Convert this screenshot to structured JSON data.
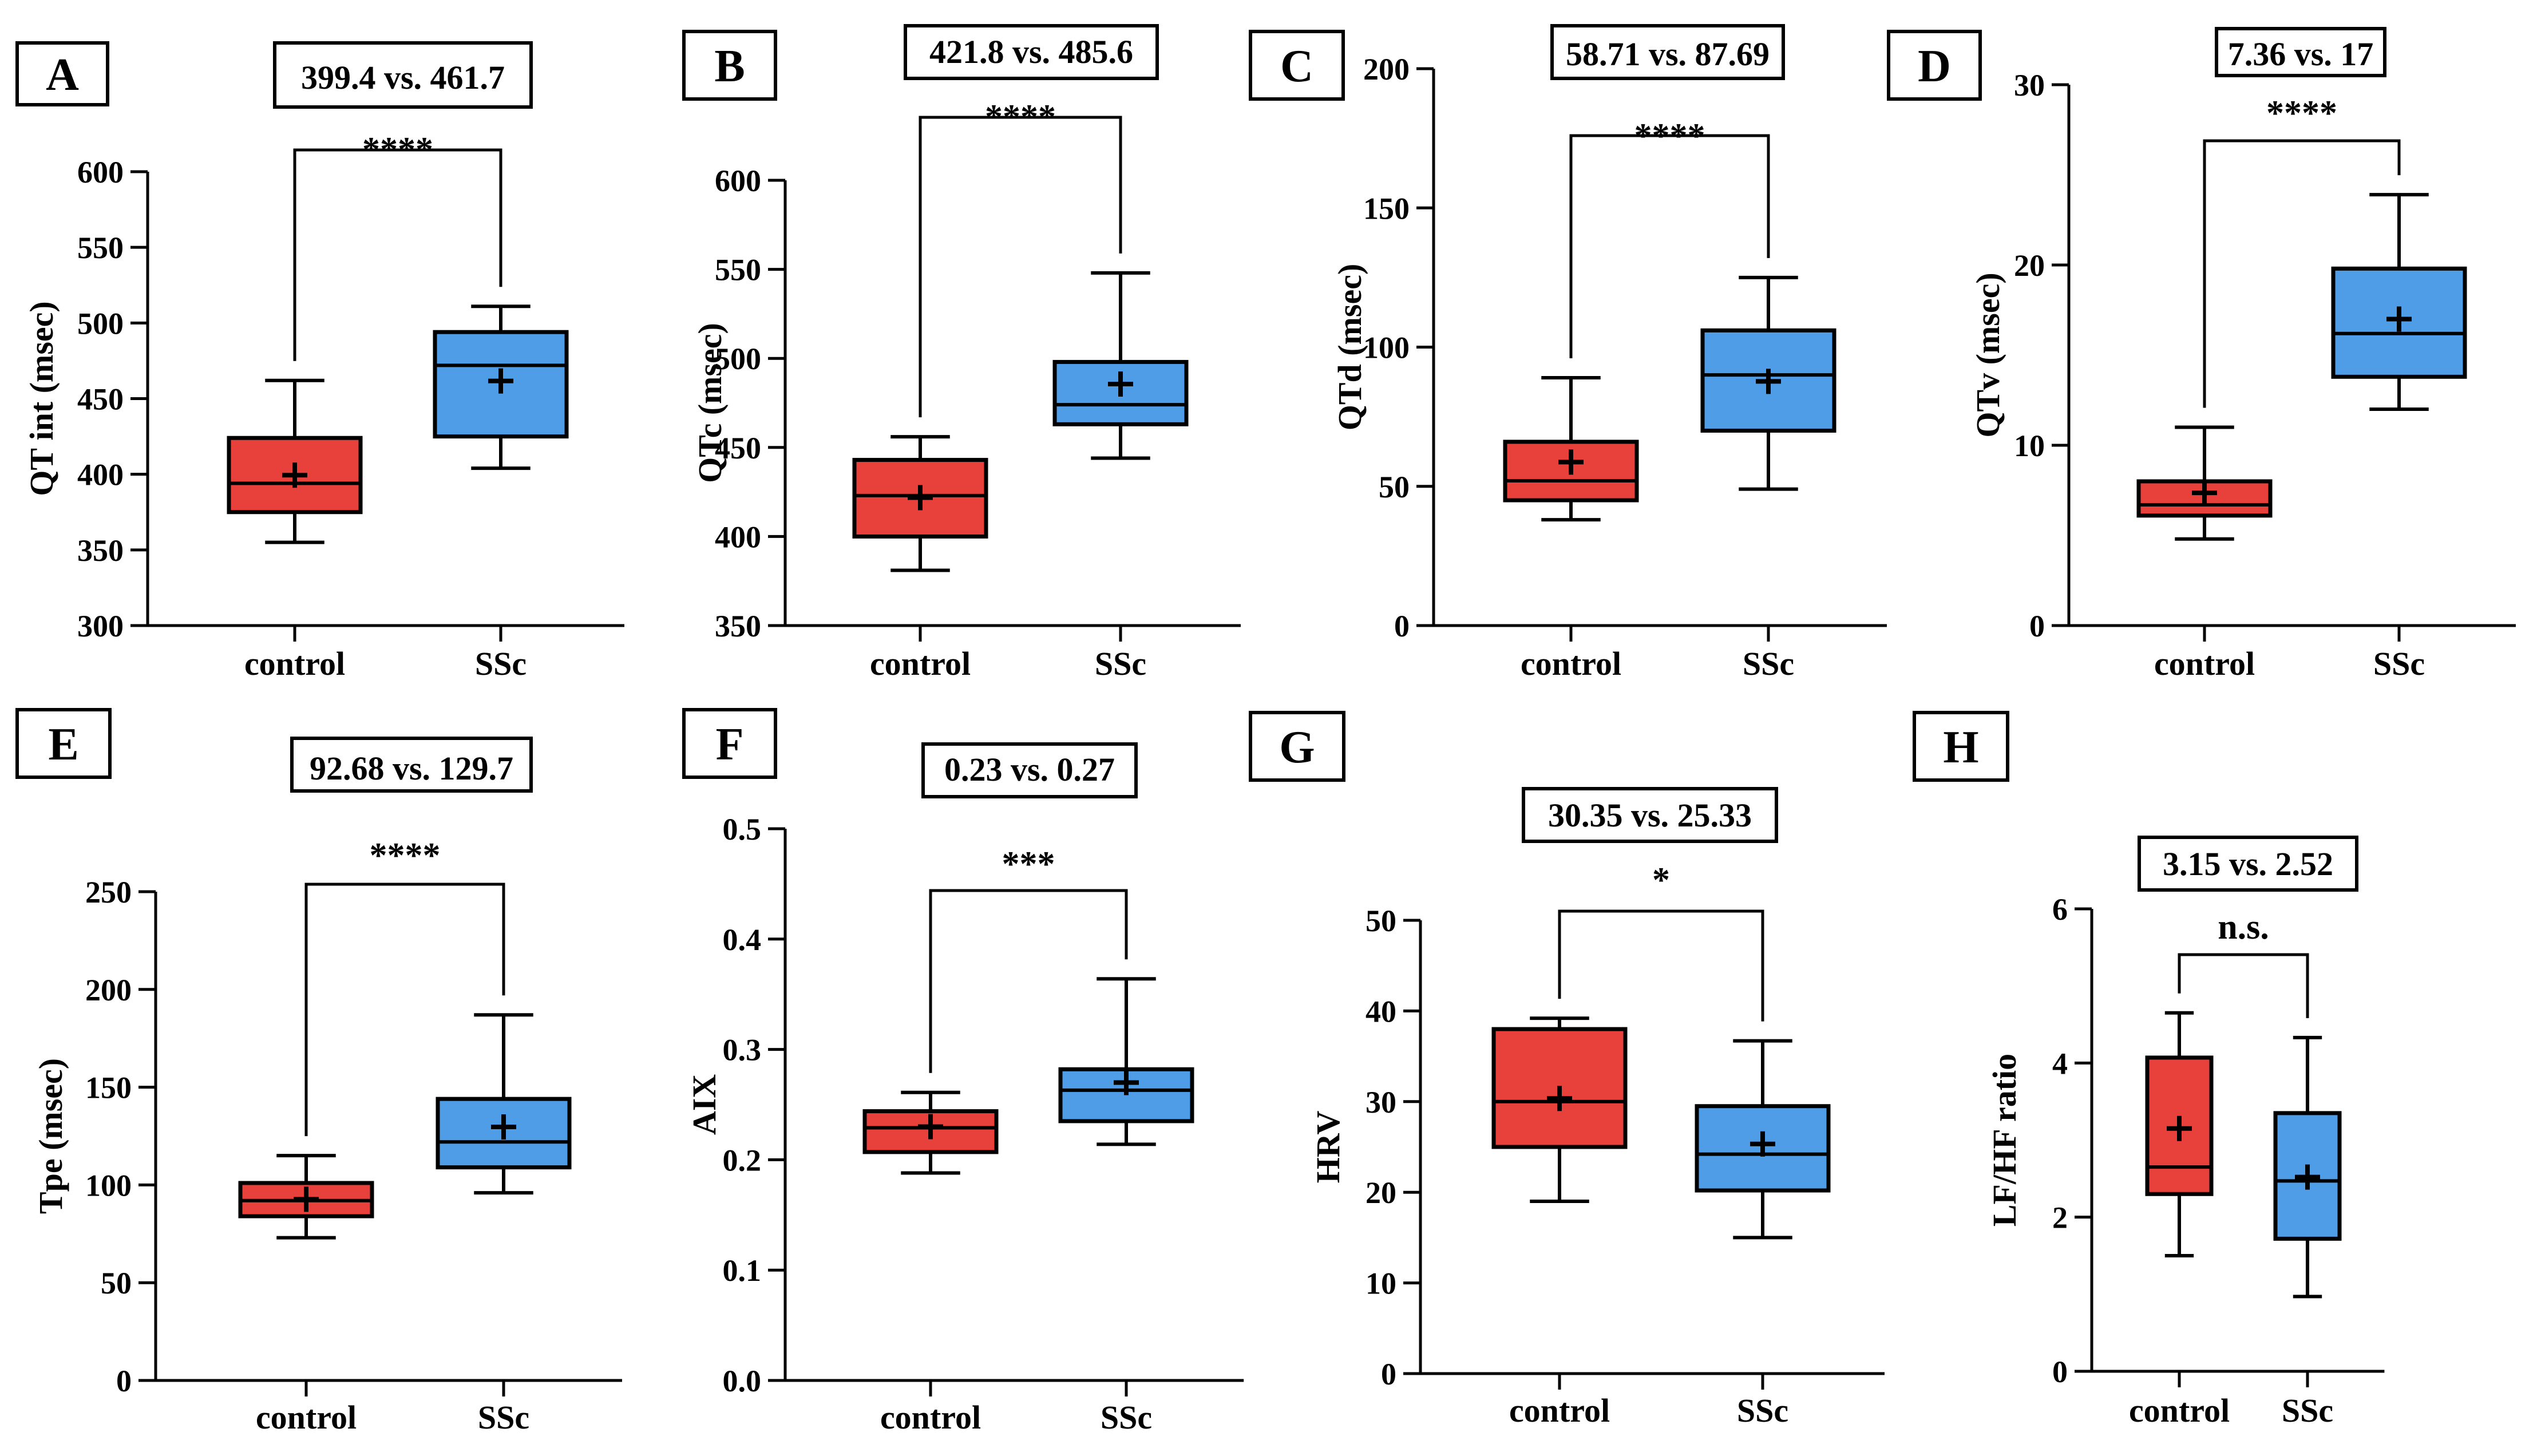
{
  "colors": {
    "control": "#e8413c",
    "ssc": "#4f9de6",
    "stroke": "#000000",
    "frame": "#000000"
  },
  "chart_data": [
    {
      "type": "box",
      "panel": "A",
      "comparison": "399.4 vs. 461.7",
      "significance": "****",
      "ylabel": "QT int (msec)",
      "ylim": [
        300,
        600
      ],
      "ticks": [
        300,
        350,
        400,
        450,
        500,
        550,
        600
      ],
      "categories": [
        "control",
        "SSc"
      ],
      "series": [
        {
          "name": "control",
          "min": 355,
          "q1": 375,
          "median": 394,
          "q3": 424,
          "max": 462,
          "mean": 399.4
        },
        {
          "name": "SSc",
          "min": 404,
          "q1": 425,
          "median": 472,
          "q3": 494,
          "max": 511,
          "mean": 461.7
        }
      ]
    },
    {
      "type": "box",
      "panel": "B",
      "comparison": "421.8 vs. 485.6",
      "significance": "****",
      "ylabel": "QTc (msec)",
      "ylim": [
        350,
        600
      ],
      "ticks": [
        350,
        400,
        450,
        500,
        550,
        600
      ],
      "categories": [
        "control",
        "SSc"
      ],
      "series": [
        {
          "name": "control",
          "min": 381,
          "q1": 400,
          "median": 423,
          "q3": 443,
          "max": 456,
          "mean": 421.8
        },
        {
          "name": "SSc",
          "min": 444,
          "q1": 463,
          "median": 474,
          "q3": 498,
          "max": 548,
          "mean": 485.6
        }
      ]
    },
    {
      "type": "box",
      "panel": "C",
      "comparison": "58.71 vs. 87.69",
      "significance": "****",
      "ylabel": "QTd (msec)",
      "ylim": [
        0,
        200
      ],
      "ticks": [
        0,
        50,
        100,
        150,
        200
      ],
      "categories": [
        "control",
        "SSc"
      ],
      "series": [
        {
          "name": "control",
          "min": 38,
          "q1": 45,
          "median": 52,
          "q3": 66,
          "max": 89,
          "mean": 58.71
        },
        {
          "name": "SSc",
          "min": 49,
          "q1": 70,
          "median": 90,
          "q3": 106,
          "max": 125,
          "mean": 87.69
        }
      ]
    },
    {
      "type": "box",
      "panel": "D",
      "comparison": "7.36 vs. 17",
      "significance": "****",
      "ylabel": "QTv (msec)",
      "ylim": [
        0,
        30
      ],
      "ticks": [
        0,
        10,
        20,
        30
      ],
      "categories": [
        "control",
        "SSc"
      ],
      "series": [
        {
          "name": "control",
          "min": 4.8,
          "q1": 6.1,
          "median": 6.7,
          "q3": 8.0,
          "max": 11.0,
          "mean": 7.36
        },
        {
          "name": "SSc",
          "min": 12.0,
          "q1": 13.8,
          "median": 16.2,
          "q3": 19.8,
          "max": 23.9,
          "mean": 17
        }
      ]
    },
    {
      "type": "box",
      "panel": "E",
      "comparison": "92.68 vs. 129.7",
      "significance": "****",
      "ylabel": "Tpe (msec)",
      "ylim": [
        0,
        250
      ],
      "ticks": [
        0,
        50,
        100,
        150,
        200,
        250
      ],
      "categories": [
        "control",
        "SSc"
      ],
      "series": [
        {
          "name": "control",
          "min": 73,
          "q1": 84,
          "median": 92,
          "q3": 101,
          "max": 115,
          "mean": 92.68
        },
        {
          "name": "SSc",
          "min": 96,
          "q1": 109,
          "median": 122,
          "q3": 144,
          "max": 187,
          "mean": 129.7
        }
      ]
    },
    {
      "type": "box",
      "panel": "F",
      "comparison": "0.23 vs. 0.27",
      "significance": "***",
      "ylabel": "AIX",
      "ylim": [
        0.0,
        0.5
      ],
      "ticks": [
        "0.0",
        "0.1",
        "0.2",
        "0.3",
        "0.4",
        "0.5"
      ],
      "categories": [
        "control",
        "SSc"
      ],
      "series": [
        {
          "name": "control",
          "min": 0.188,
          "q1": 0.207,
          "median": 0.229,
          "q3": 0.244,
          "max": 0.261,
          "mean": 0.23
        },
        {
          "name": "SSc",
          "min": 0.214,
          "q1": 0.235,
          "median": 0.263,
          "q3": 0.282,
          "max": 0.364,
          "mean": 0.27
        }
      ]
    },
    {
      "type": "box",
      "panel": "G",
      "comparison": "30.35 vs. 25.33",
      "significance": "*",
      "ylabel": "HRV",
      "ylim": [
        0,
        50
      ],
      "ticks": [
        0,
        10,
        20,
        30,
        40,
        50
      ],
      "categories": [
        "control",
        "SSc"
      ],
      "series": [
        {
          "name": "control",
          "min": 19,
          "q1": 25,
          "median": 30,
          "q3": 38,
          "max": 39.2,
          "mean": 30.35
        },
        {
          "name": "SSc",
          "min": 15,
          "q1": 20.2,
          "median": 24.2,
          "q3": 29.5,
          "max": 36.7,
          "mean": 25.33
        }
      ]
    },
    {
      "type": "box",
      "panel": "H",
      "comparison": "3.15 vs. 2.52",
      "significance": "n.s.",
      "ylabel": "LF/HF ratio",
      "ylim": [
        0,
        6
      ],
      "ticks": [
        0,
        2,
        4,
        6
      ],
      "categories": [
        "control",
        "SSc"
      ],
      "series": [
        {
          "name": "control",
          "min": 1.5,
          "q1": 2.3,
          "median": 2.65,
          "q3": 4.07,
          "max": 4.65,
          "mean": 3.15
        },
        {
          "name": "SSc",
          "min": 0.97,
          "q1": 1.72,
          "median": 2.47,
          "q3": 3.35,
          "max": 4.33,
          "mean": 2.52
        }
      ]
    }
  ]
}
